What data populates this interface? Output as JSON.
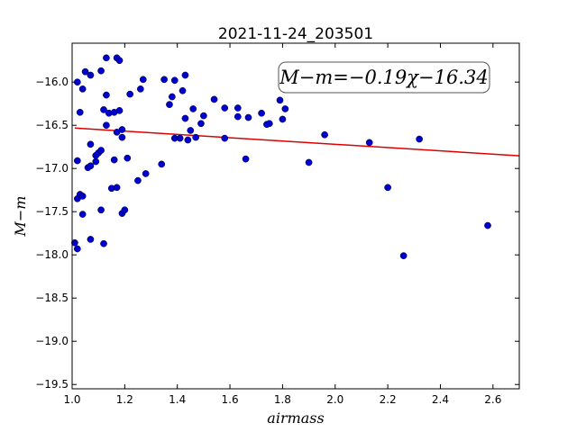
{
  "chart_data": {
    "type": "scatter",
    "title": "2021-11-24_203501",
    "xlabel": "airmass",
    "ylabel": "M−m",
    "xlim": [
      1.0,
      2.7
    ],
    "ylim": [
      -19.55,
      -15.55
    ],
    "y_inverted": true,
    "xticks": [
      1.0,
      1.2,
      1.4,
      1.6,
      1.8,
      2.0,
      2.2,
      2.4,
      2.6
    ],
    "xtick_labels": [
      "1.0",
      "1.2",
      "1.4",
      "1.6",
      "1.8",
      "2.0",
      "2.2",
      "2.4",
      "2.6"
    ],
    "yticks": [
      -16.0,
      -16.5,
      -17.0,
      -17.5,
      -18.0,
      -18.5,
      -19.0,
      -19.5
    ],
    "ytick_labels": [
      "−16.0",
      "−16.5",
      "−17.0",
      "−17.5",
      "−18.0",
      "−18.5",
      "−19.0",
      "−19.5"
    ],
    "grid": false,
    "point_color": "#0000cc",
    "line_color": "#dd0000",
    "fit": {
      "slope": -0.19,
      "intercept": -16.34
    },
    "annotation": "M−m=−0.19χ−16.34",
    "points": [
      [
        1.02,
        -16.0
      ],
      [
        1.03,
        -16.35
      ],
      [
        1.04,
        -16.08
      ],
      [
        1.05,
        -15.88
      ],
      [
        1.07,
        -15.92
      ],
      [
        1.11,
        -15.87
      ],
      [
        1.13,
        -15.72
      ],
      [
        1.17,
        -15.72
      ],
      [
        1.18,
        -15.75
      ],
      [
        1.12,
        -16.32
      ],
      [
        1.13,
        -16.15
      ],
      [
        1.14,
        -16.36
      ],
      [
        1.16,
        -16.35
      ],
      [
        1.18,
        -16.33
      ],
      [
        1.13,
        -16.5
      ],
      [
        1.17,
        -16.58
      ],
      [
        1.19,
        -16.55
      ],
      [
        1.19,
        -16.64
      ],
      [
        1.22,
        -16.14
      ],
      [
        1.26,
        -16.08
      ],
      [
        1.27,
        -15.97
      ],
      [
        1.07,
        -16.72
      ],
      [
        1.09,
        -16.85
      ],
      [
        1.1,
        -16.82
      ],
      [
        1.11,
        -16.79
      ],
      [
        1.09,
        -16.92
      ],
      [
        1.06,
        -16.99
      ],
      [
        1.07,
        -16.97
      ],
      [
        1.02,
        -16.91
      ],
      [
        1.16,
        -16.9
      ],
      [
        1.21,
        -16.88
      ],
      [
        1.02,
        -17.35
      ],
      [
        1.03,
        -17.3
      ],
      [
        1.04,
        -17.32
      ],
      [
        1.04,
        -17.53
      ],
      [
        1.15,
        -17.23
      ],
      [
        1.17,
        -17.22
      ],
      [
        1.11,
        -17.48
      ],
      [
        1.19,
        -17.52
      ],
      [
        1.2,
        -17.48
      ],
      [
        1.25,
        -17.14
      ],
      [
        1.28,
        -17.06
      ],
      [
        1.01,
        -17.86
      ],
      [
        1.02,
        -17.93
      ],
      [
        1.07,
        -17.82
      ],
      [
        1.12,
        -17.87
      ],
      [
        1.34,
        -16.95
      ],
      [
        1.35,
        -15.97
      ],
      [
        1.39,
        -15.98
      ],
      [
        1.43,
        -15.92
      ],
      [
        1.42,
        -16.1
      ],
      [
        1.38,
        -16.17
      ],
      [
        1.37,
        -16.26
      ],
      [
        1.43,
        -16.42
      ],
      [
        1.46,
        -16.31
      ],
      [
        1.49,
        -16.48
      ],
      [
        1.5,
        -16.39
      ],
      [
        1.45,
        -16.56
      ],
      [
        1.39,
        -16.65
      ],
      [
        1.41,
        -16.65
      ],
      [
        1.44,
        -16.67
      ],
      [
        1.47,
        -16.64
      ],
      [
        1.54,
        -16.2
      ],
      [
        1.58,
        -16.3
      ],
      [
        1.63,
        -16.3
      ],
      [
        1.63,
        -16.4
      ],
      [
        1.67,
        -16.41
      ],
      [
        1.58,
        -16.65
      ],
      [
        1.66,
        -16.89
      ],
      [
        1.72,
        -16.36
      ],
      [
        1.74,
        -16.49
      ],
      [
        1.75,
        -16.48
      ],
      [
        1.79,
        -16.21
      ],
      [
        1.8,
        -16.43
      ],
      [
        1.81,
        -16.31
      ],
      [
        1.9,
        -16.93
      ],
      [
        1.96,
        -16.61
      ],
      [
        2.13,
        -16.7
      ],
      [
        2.2,
        -17.22
      ],
      [
        2.26,
        -18.01
      ],
      [
        2.32,
        -16.66
      ],
      [
        2.58,
        -17.66
      ]
    ]
  }
}
